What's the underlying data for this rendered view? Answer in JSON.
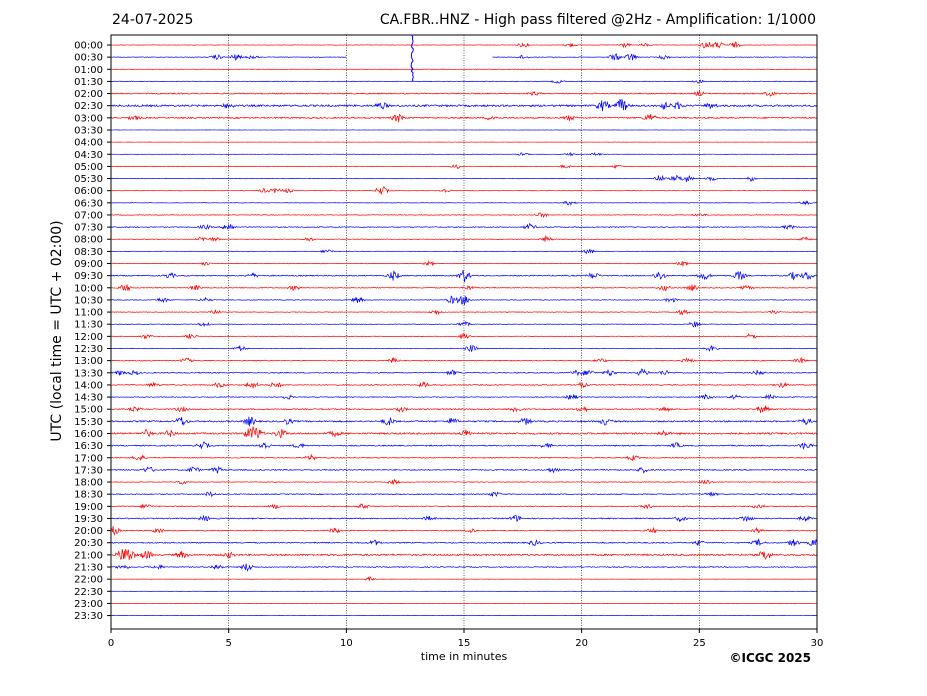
{
  "header": {
    "date": "24-07-2025",
    "title": "CA.FBR..HNZ - High pass filtered @2Hz - Amplification: 1/1000"
  },
  "footer": {
    "copyright": "©ICGC 2025"
  },
  "chart_data": {
    "type": "line",
    "subtype": "helicorder",
    "xlabel": "time in minutes",
    "ylabel": "UTC (local time = UTC + 02:00)",
    "xlim": [
      0,
      30
    ],
    "x_ticks": [
      0,
      5,
      10,
      15,
      20,
      25,
      30
    ],
    "grid": "vertical dotted at 5-minute intervals",
    "colors": {
      "even_trace": "#ff0000",
      "odd_trace": "#0000ff"
    },
    "rows": [
      {
        "label": "00:00",
        "noise": 0.2,
        "events": [
          [
            17.5,
            1
          ],
          [
            19.5,
            1
          ],
          [
            21.8,
            1.2
          ],
          [
            22.7,
            0.8
          ],
          [
            25.3,
            2
          ],
          [
            25.8,
            1.6
          ],
          [
            26.5,
            1.4
          ]
        ]
      },
      {
        "label": "00:30",
        "noise": 0.3,
        "gap": [
          10,
          16.2
        ],
        "events": [
          [
            4.5,
            1.2
          ],
          [
            5.3,
            1.5
          ],
          [
            6,
            1
          ],
          [
            17.5,
            1
          ],
          [
            21.4,
            1.8
          ],
          [
            22.1,
            2
          ],
          [
            23.5,
            1
          ]
        ]
      },
      {
        "label": "01:00",
        "noise": 0.2,
        "events": []
      },
      {
        "label": "01:30",
        "noise": 0.35,
        "events": [
          [
            19,
            0.8
          ],
          [
            25,
            0.8
          ]
        ]
      },
      {
        "label": "02:00",
        "noise": 0.6,
        "events": [
          [
            18,
            0.8
          ],
          [
            25,
            1
          ],
          [
            28,
            1
          ]
        ]
      },
      {
        "label": "02:30",
        "noise": 1,
        "events": [
          [
            5,
            1
          ],
          [
            11.5,
            1.5
          ],
          [
            20.9,
            2.5
          ],
          [
            21.7,
            3.2
          ],
          [
            23.5,
            1.6
          ],
          [
            24.1,
            1.5
          ],
          [
            25.5,
            1.2
          ]
        ]
      },
      {
        "label": "03:00",
        "noise": 0.7,
        "events": [
          [
            1,
            1
          ],
          [
            12.2,
            2
          ],
          [
            16.2,
            1.2
          ],
          [
            19.5,
            1.2
          ],
          [
            22.9,
            2
          ]
        ]
      },
      {
        "label": "03:30",
        "noise": 0.1,
        "events": []
      },
      {
        "label": "04:00",
        "noise": 0.1,
        "events": []
      },
      {
        "label": "04:30",
        "noise": 0.15,
        "events": [
          [
            17.5,
            0.8
          ],
          [
            19.5,
            0.7
          ],
          [
            20.6,
            0.8
          ]
        ]
      },
      {
        "label": "05:00",
        "noise": 0.2,
        "events": [
          [
            14.7,
            1
          ],
          [
            19.3,
            0.8
          ],
          [
            21.5,
            0.8
          ]
        ]
      },
      {
        "label": "05:30",
        "noise": 0.3,
        "events": [
          [
            23.3,
            1.6
          ],
          [
            24,
            1.4
          ],
          [
            24.5,
            1.8
          ],
          [
            25.5,
            1
          ],
          [
            27.2,
            1.2
          ]
        ]
      },
      {
        "label": "06:00",
        "noise": 0.2,
        "events": [
          [
            6.5,
            1
          ],
          [
            7,
            1.2
          ],
          [
            7.5,
            1
          ],
          [
            11.5,
            2.5
          ],
          [
            14.2,
            1
          ]
        ]
      },
      {
        "label": "06:30",
        "noise": 0.2,
        "events": [
          [
            19.5,
            1.2
          ],
          [
            29.5,
            0.8
          ]
        ]
      },
      {
        "label": "07:00",
        "noise": 0.35,
        "events": [
          [
            18.3,
            1.2
          ],
          [
            25,
            0.8
          ]
        ]
      },
      {
        "label": "07:30",
        "noise": 0.5,
        "events": [
          [
            4,
            1
          ],
          [
            5,
            2.2
          ],
          [
            17.8,
            1.5
          ],
          [
            28.8,
            1
          ]
        ]
      },
      {
        "label": "08:00",
        "noise": 0.3,
        "events": [
          [
            3.9,
            1.2
          ],
          [
            4.4,
            1
          ],
          [
            8.4,
            1
          ],
          [
            18.5,
            1.4
          ],
          [
            29.5,
            1
          ]
        ]
      },
      {
        "label": "08:30",
        "noise": 0.25,
        "events": [
          [
            9.2,
            1
          ],
          [
            20.3,
            1.3
          ]
        ]
      },
      {
        "label": "09:00",
        "noise": 0.3,
        "events": [
          [
            4,
            0.8
          ],
          [
            13.5,
            1
          ],
          [
            24.3,
            1.2
          ]
        ]
      },
      {
        "label": "09:30",
        "noise": 0.6,
        "events": [
          [
            2.5,
            1.2
          ],
          [
            6,
            1
          ],
          [
            12,
            2.2
          ],
          [
            15,
            3
          ],
          [
            20.5,
            1.5
          ],
          [
            23.3,
            2.2
          ],
          [
            25.2,
            2
          ],
          [
            26.7,
            2.2
          ],
          [
            29,
            1.6
          ],
          [
            29.6,
            2
          ]
        ]
      },
      {
        "label": "10:00",
        "noise": 0.4,
        "events": [
          [
            0.6,
            2
          ],
          [
            3.6,
            1.2
          ],
          [
            7.8,
            1.2
          ],
          [
            15.2,
            1
          ],
          [
            23.5,
            1.4
          ],
          [
            24.7,
            1.5
          ],
          [
            27,
            1
          ]
        ]
      },
      {
        "label": "10:30",
        "noise": 0.35,
        "events": [
          [
            2.2,
            1.2
          ],
          [
            4,
            1
          ],
          [
            10.5,
            1.4
          ],
          [
            14.5,
            1.8
          ],
          [
            15,
            2.5
          ],
          [
            23.8,
            1.2
          ]
        ]
      },
      {
        "label": "11:00",
        "noise": 0.3,
        "events": [
          [
            4.4,
            1.2
          ],
          [
            13.8,
            1.2
          ],
          [
            24.3,
            1.4
          ],
          [
            28.2,
            1
          ]
        ]
      },
      {
        "label": "11:30",
        "noise": 0.3,
        "events": [
          [
            4,
            1.2
          ],
          [
            15,
            1.2
          ],
          [
            24.8,
            1.5
          ]
        ]
      },
      {
        "label": "12:00",
        "noise": 0.3,
        "events": [
          [
            1.5,
            1
          ],
          [
            3.4,
            1.2
          ],
          [
            15,
            1.5
          ],
          [
            27.2,
            1.4
          ]
        ]
      },
      {
        "label": "12:30",
        "noise": 0.35,
        "events": [
          [
            5.5,
            1.4
          ],
          [
            15.3,
            1.6
          ],
          [
            25.5,
            1.2
          ]
        ]
      },
      {
        "label": "13:00",
        "noise": 0.45,
        "events": [
          [
            3.2,
            1.2
          ],
          [
            12,
            1.2
          ],
          [
            20.8,
            1
          ],
          [
            24.5,
            1.2
          ],
          [
            29.3,
            1.4
          ]
        ]
      },
      {
        "label": "13:30",
        "noise": 0.5,
        "events": [
          [
            0.4,
            1.2
          ],
          [
            1,
            1
          ],
          [
            14.5,
            1.2
          ],
          [
            19.8,
            1.2
          ],
          [
            20.3,
            1.5
          ],
          [
            21.2,
            1.5
          ],
          [
            22.6,
            1.8
          ],
          [
            23.5,
            1.2
          ],
          [
            27.5,
            1.3
          ]
        ]
      },
      {
        "label": "14:00",
        "noise": 0.5,
        "events": [
          [
            1.8,
            1
          ],
          [
            4.6,
            1.2
          ],
          [
            6,
            1.8
          ],
          [
            7,
            1.5
          ],
          [
            13.3,
            1.2
          ],
          [
            20,
            1.2
          ],
          [
            28.5,
            1.2
          ]
        ]
      },
      {
        "label": "14:30",
        "noise": 0.4,
        "events": [
          [
            7.5,
            1
          ],
          [
            19.6,
            1.4
          ],
          [
            25.3,
            1.2
          ],
          [
            26.5,
            1
          ],
          [
            28,
            1.2
          ]
        ]
      },
      {
        "label": "15:00",
        "noise": 0.6,
        "events": [
          [
            1,
            1
          ],
          [
            3,
            1.2
          ],
          [
            12.3,
            1.2
          ],
          [
            17.2,
            1.5
          ],
          [
            20,
            1.6
          ],
          [
            23.5,
            1.2
          ],
          [
            27.7,
            2
          ]
        ]
      },
      {
        "label": "15:30",
        "noise": 0.8,
        "events": [
          [
            3,
            2.2
          ],
          [
            5.9,
            2.2
          ],
          [
            7.5,
            1.2
          ],
          [
            11.8,
            1.8
          ],
          [
            14.5,
            1.5
          ],
          [
            17.6,
            1.5
          ],
          [
            21,
            1.5
          ],
          [
            29.5,
            1.5
          ]
        ]
      },
      {
        "label": "16:00",
        "noise": 0.9,
        "events": [
          [
            1.5,
            1.5
          ],
          [
            2.5,
            1.5
          ],
          [
            5.9,
            2.5
          ],
          [
            6.2,
            2.8
          ],
          [
            7.2,
            2
          ],
          [
            9.5,
            1.2
          ],
          [
            15.1,
            1.5
          ],
          [
            23.5,
            1.2
          ]
        ]
      },
      {
        "label": "16:30",
        "noise": 0.6,
        "events": [
          [
            3.9,
            1.8
          ],
          [
            6.5,
            1.8
          ],
          [
            8,
            1.2
          ],
          [
            18.5,
            1.2
          ],
          [
            24,
            1.2
          ],
          [
            29.5,
            1.8
          ]
        ]
      },
      {
        "label": "17:00",
        "noise": 0.45,
        "events": [
          [
            1.2,
            1.5
          ],
          [
            8.5,
            1.2
          ],
          [
            22.2,
            1.2
          ]
        ]
      },
      {
        "label": "17:30",
        "noise": 0.6,
        "events": [
          [
            1.6,
            1.4
          ],
          [
            3.5,
            1.5
          ],
          [
            4.5,
            1.5
          ],
          [
            18.8,
            1
          ],
          [
            22.6,
            1.2
          ]
        ]
      },
      {
        "label": "18:00",
        "noise": 0.35,
        "events": [
          [
            3,
            1
          ],
          [
            12,
            1.2
          ],
          [
            25.3,
            1.2
          ]
        ]
      },
      {
        "label": "18:30",
        "noise": 0.5,
        "events": [
          [
            4.2,
            1.2
          ],
          [
            16.3,
            1.2
          ],
          [
            25.5,
            1
          ]
        ]
      },
      {
        "label": "19:00",
        "noise": 0.5,
        "events": [
          [
            1.5,
            1
          ],
          [
            7,
            1
          ],
          [
            10.7,
            1.2
          ],
          [
            22.8,
            1
          ],
          [
            27.5,
            1
          ]
        ]
      },
      {
        "label": "19:30",
        "noise": 0.6,
        "events": [
          [
            4,
            1.2
          ],
          [
            13.5,
            1
          ],
          [
            17.2,
            1.5
          ],
          [
            24.2,
            1.2
          ],
          [
            27,
            1.5
          ],
          [
            29.5,
            1.2
          ]
        ]
      },
      {
        "label": "20:00",
        "noise": 0.5,
        "events": [
          [
            0.1,
            2
          ],
          [
            2,
            1.2
          ],
          [
            9.5,
            1.2
          ],
          [
            15.3,
            1.2
          ],
          [
            23,
            1.2
          ],
          [
            27.5,
            1.2
          ]
        ]
      },
      {
        "label": "20:30",
        "noise": 0.6,
        "events": [
          [
            11.2,
            1.2
          ],
          [
            18,
            1.2
          ],
          [
            25,
            1.2
          ],
          [
            27.5,
            1.4
          ],
          [
            29,
            1.6
          ],
          [
            29.9,
            2
          ]
        ]
      },
      {
        "label": "21:00",
        "noise": 0.9,
        "events": [
          [
            0.5,
            3
          ],
          [
            0.8,
            2.5
          ],
          [
            1.5,
            2
          ],
          [
            3,
            1.5
          ],
          [
            5,
            1.2
          ],
          [
            27.8,
            2.5
          ]
        ]
      },
      {
        "label": "21:30",
        "noise": 0.5,
        "events": [
          [
            0.5,
            1.2
          ],
          [
            2,
            1
          ],
          [
            4.5,
            1.2
          ],
          [
            5.8,
            2
          ]
        ]
      },
      {
        "label": "22:00",
        "noise": 0.1,
        "events": [
          [
            11,
            1
          ]
        ]
      },
      {
        "label": "22:30",
        "noise": 0.1,
        "events": []
      },
      {
        "label": "23:00",
        "noise": 0.1,
        "events": []
      },
      {
        "label": "23:30",
        "noise": 0.1,
        "events": []
      }
    ],
    "spike": {
      "row": "00:00",
      "x": 12.8,
      "extends_to_row": "01:30"
    }
  }
}
